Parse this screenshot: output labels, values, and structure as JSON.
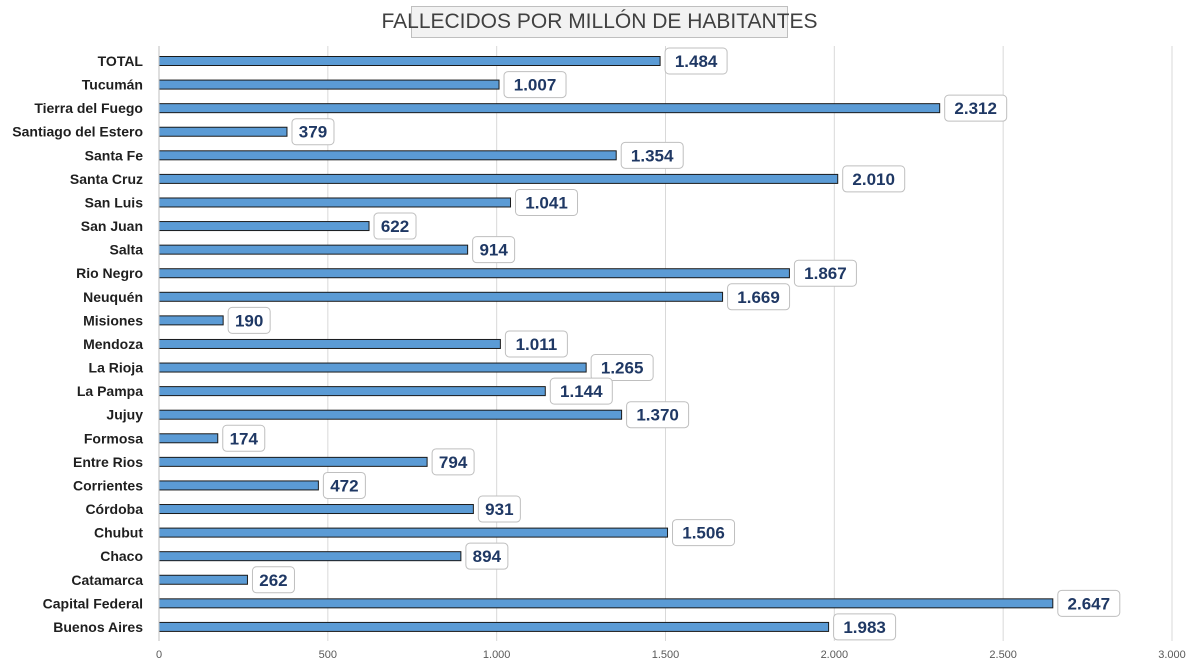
{
  "chart_data": {
    "type": "bar",
    "orientation": "horizontal",
    "title": "FALLECIDOS POR MILLÓN DE HABITANTES",
    "categories": [
      "TOTAL",
      "Tucumán",
      "Tierra del Fuego",
      "Santiago del Estero",
      "Santa Fe",
      "Santa Cruz",
      "San Luis",
      "San Juan",
      "Salta",
      "Rio Negro",
      "Neuquén",
      "Misiones",
      "Mendoza",
      "La Rioja",
      "La Pampa",
      "Jujuy",
      "Formosa",
      "Entre Rios",
      "Corrientes",
      "Córdoba",
      "Chubut",
      "Chaco",
      "Catamarca",
      "Capital Federal",
      "Buenos Aires"
    ],
    "values": [
      1484,
      1007,
      2312,
      379,
      1354,
      2010,
      1041,
      622,
      914,
      1867,
      1669,
      190,
      1011,
      1265,
      1144,
      1370,
      174,
      794,
      472,
      931,
      1506,
      894,
      262,
      2647,
      1983
    ],
    "value_labels": [
      "1.484",
      "1.007",
      "2.312",
      "379",
      "1.354",
      "2.010",
      "1.041",
      "622",
      "914",
      "1.867",
      "1.669",
      "190",
      "1.011",
      "1.265",
      "1.144",
      "1.370",
      "174",
      "794",
      "472",
      "931",
      "1.506",
      "894",
      "262",
      "2.647",
      "1.983"
    ],
    "xlim": [
      0,
      3000
    ],
    "xticks": [
      0,
      500,
      1000,
      1500,
      2000,
      2500,
      3000
    ],
    "xtick_labels": [
      "0",
      "500",
      "1.000",
      "1.500",
      "2.000",
      "2.500",
      "3.000"
    ],
    "grid": "vertical",
    "legend": "none",
    "colors": {
      "bar": "#5b9bd5",
      "bar_outline": "#1a1a1a",
      "data_label": "#1f3864",
      "grid": "#d9d9d9"
    }
  }
}
